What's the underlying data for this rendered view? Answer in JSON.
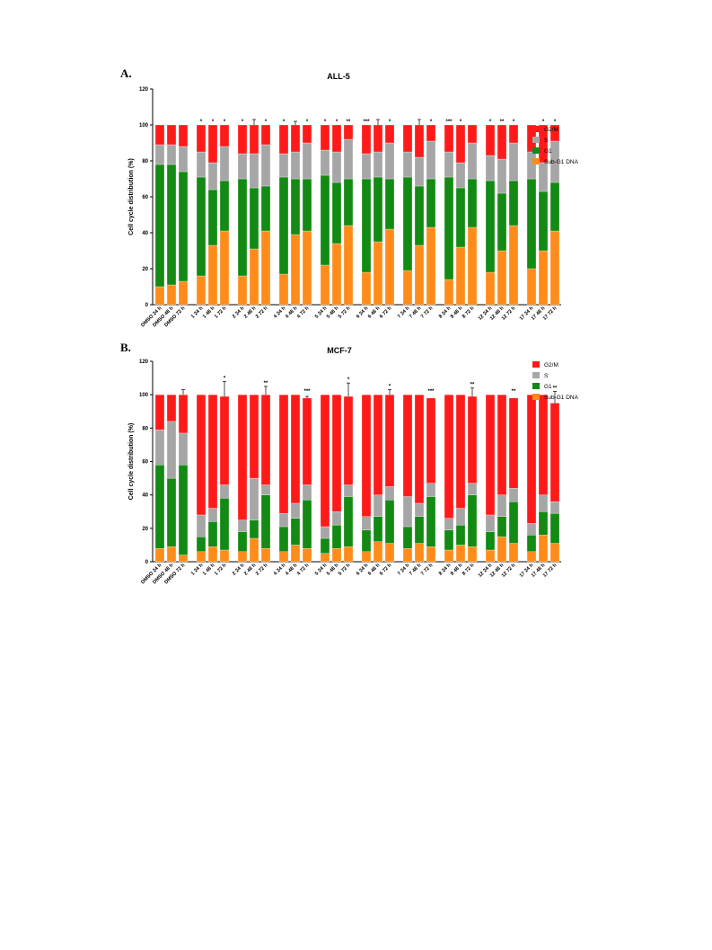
{
  "colors": {
    "G2/M": "#ff1a1a",
    "S": "#a6a6a6",
    "G1": "#138a13",
    "Sub-G1 DNA": "#ff8c1a"
  },
  "chart_data": [
    {
      "panel": "A.",
      "type": "bar",
      "stacked": true,
      "title": "ALL-5",
      "ylabel": "Cell cycle distribution (%)",
      "ylim": [
        0,
        120
      ],
      "yticks": [
        0,
        20,
        40,
        60,
        80,
        100,
        120
      ],
      "grid": false,
      "legend_position": "right",
      "categories": [
        "DMSO 24 h",
        "DMSO 48 h",
        "DMSO 72 h",
        "1 24 h",
        "1 48 h",
        "1 72 h",
        "2 24 h",
        "2 48 h",
        "2 72 h",
        "4 24 h",
        "4 48 h",
        "4 72 h",
        "5 24 h",
        "5 48 h",
        "5 72 h",
        "6 24 h",
        "6 48 h",
        "6 72 h",
        "7 24 h",
        "7 48 h",
        "7 72 h",
        "8 24 h",
        "8 48 h",
        "8 72 h",
        "12 24 h",
        "12 48 h",
        "12 72 h",
        "17 24 h",
        "17 48 h",
        "17 72 h"
      ],
      "series": [
        {
          "name": "Sub-G1 DNA",
          "values": [
            10,
            11,
            13,
            16,
            33,
            41,
            16,
            31,
            41,
            17,
            39,
            41,
            22,
            34,
            44,
            18,
            35,
            42,
            19,
            33,
            43,
            14,
            32,
            43,
            18,
            30,
            44,
            20,
            30,
            41
          ]
        },
        {
          "name": "G1",
          "values": [
            68,
            67,
            61,
            55,
            31,
            28,
            54,
            34,
            25,
            54,
            31,
            29,
            50,
            34,
            26,
            52,
            36,
            28,
            52,
            33,
            27,
            57,
            33,
            27,
            51,
            32,
            25,
            50,
            33,
            27
          ]
        },
        {
          "name": "S",
          "values": [
            11,
            11,
            14,
            14,
            15,
            19,
            14,
            19,
            23,
            13,
            15,
            20,
            14,
            17,
            22,
            14,
            14,
            20,
            14,
            16,
            21,
            14,
            14,
            20,
            14,
            19,
            21,
            15,
            16,
            23
          ]
        },
        {
          "name": "G2/M",
          "values": [
            11,
            11,
            12,
            15,
            21,
            12,
            16,
            16,
            11,
            16,
            15,
            10,
            14,
            15,
            8,
            16,
            15,
            10,
            15,
            18,
            9,
            15,
            21,
            10,
            17,
            19,
            10,
            15,
            21,
            9
          ]
        }
      ],
      "error_tops": [
        100,
        100,
        100,
        100,
        100,
        100,
        100,
        103,
        100,
        100,
        102,
        100,
        100,
        100,
        100,
        100,
        103,
        100,
        100,
        103,
        100,
        100,
        100,
        100,
        100,
        100,
        100,
        100,
        100,
        100
      ]
    },
    {
      "panel": "B.",
      "type": "bar",
      "stacked": true,
      "title": "MCF-7",
      "ylabel": "Cell cycle distribution (%)",
      "ylim": [
        0,
        120
      ],
      "yticks": [
        0,
        20,
        40,
        60,
        80,
        100,
        120
      ],
      "grid": false,
      "legend_position": "right",
      "categories": [
        "DMSO 24 h",
        "DMSO 48 h",
        "DMSO 72 h",
        "1 24 h",
        "1 48 h",
        "1 72 h",
        "2 24 h",
        "2 48 h",
        "2 72 h",
        "4 24 h",
        "4 48 h",
        "4 72 h",
        "5 24 h",
        "5 48 h",
        "5 72 h",
        "6 24 h",
        "6 48 h",
        "6 72 h",
        "7 24 h",
        "7 48 h",
        "7 72 h",
        "8 24 h",
        "8 48 h",
        "8 72 h",
        "12 24 h",
        "12 48 h",
        "12 72 h",
        "17 24 h",
        "17 48 h",
        "17 72 h"
      ],
      "series": [
        {
          "name": "Sub-G1 DNA",
          "values": [
            8,
            9,
            4,
            6,
            9,
            7,
            6,
            14,
            8,
            6,
            10,
            8,
            5,
            8,
            9,
            6,
            12,
            11,
            8,
            11,
            9,
            7,
            10,
            9,
            7,
            15,
            11,
            6,
            16,
            11
          ]
        },
        {
          "name": "G1",
          "values": [
            50,
            41,
            54,
            9,
            15,
            31,
            12,
            11,
            32,
            15,
            16,
            29,
            9,
            14,
            30,
            13,
            15,
            26,
            13,
            16,
            30,
            12,
            12,
            31,
            11,
            12,
            25,
            10,
            14,
            18
          ]
        },
        {
          "name": "S",
          "values": [
            21,
            34,
            19,
            13,
            8,
            8,
            7,
            25,
            6,
            8,
            9,
            9,
            7,
            8,
            7,
            8,
            13,
            8,
            18,
            8,
            8,
            7,
            10,
            7,
            10,
            13,
            8,
            7,
            10,
            7
          ]
        },
        {
          "name": "G2/M",
          "values": [
            21,
            16,
            23,
            72,
            68,
            53,
            75,
            50,
            54,
            71,
            65,
            52,
            79,
            70,
            53,
            73,
            60,
            55,
            61,
            65,
            51,
            74,
            68,
            52,
            72,
            60,
            54,
            77,
            60,
            59
          ]
        }
      ],
      "error_tops": [
        100,
        100,
        103,
        100,
        100,
        108,
        100,
        100,
        105,
        100,
        100,
        99,
        100,
        100,
        107,
        100,
        100,
        103,
        100,
        100,
        98,
        100,
        100,
        104,
        100,
        100,
        98,
        100,
        100,
        102
      ]
    }
  ],
  "legend": {
    "items": [
      "G2/M",
      "S",
      "G1",
      "Sub-G1 DNA"
    ]
  },
  "annotations": {
    "A": [
      {
        "cat": "1 24 h",
        "text": "*"
      },
      {
        "cat": "1 48 h",
        "text": "*"
      },
      {
        "cat": "1 72 h",
        "text": "*"
      },
      {
        "cat": "2 24 h",
        "text": "*"
      },
      {
        "cat": "2 72 h",
        "text": "*"
      },
      {
        "cat": "4 24 h",
        "text": "*"
      },
      {
        "cat": "4 72 h",
        "text": "*"
      },
      {
        "cat": "5 24 h",
        "text": "*"
      },
      {
        "cat": "5 48 h",
        "text": "*"
      },
      {
        "cat": "5 72 h",
        "text": "**"
      },
      {
        "cat": "6 24 h",
        "text": "***"
      },
      {
        "cat": "6 72 h",
        "text": "*"
      },
      {
        "cat": "7 72 h",
        "text": "*"
      },
      {
        "cat": "8 24 h",
        "text": "***"
      },
      {
        "cat": "8 48 h",
        "text": "*"
      },
      {
        "cat": "12 24 h",
        "text": "*"
      },
      {
        "cat": "12 48 h",
        "text": "**"
      },
      {
        "cat": "12 72 h",
        "text": "*"
      },
      {
        "cat": "17 48 h",
        "text": "*"
      },
      {
        "cat": "17 72 h",
        "text": "*"
      }
    ],
    "B": [
      {
        "cat": "1 72 h",
        "text": "*"
      },
      {
        "cat": "2 72 h",
        "text": "**"
      },
      {
        "cat": "4 72 h",
        "text": "***"
      },
      {
        "cat": "5 72 h",
        "text": "*"
      },
      {
        "cat": "6 72 h",
        "text": "*"
      },
      {
        "cat": "7 72 h",
        "text": "***"
      },
      {
        "cat": "8 72 h",
        "text": "**"
      },
      {
        "cat": "12 72 h",
        "text": "**"
      },
      {
        "cat": "17 72 h",
        "text": "**"
      }
    ]
  }
}
